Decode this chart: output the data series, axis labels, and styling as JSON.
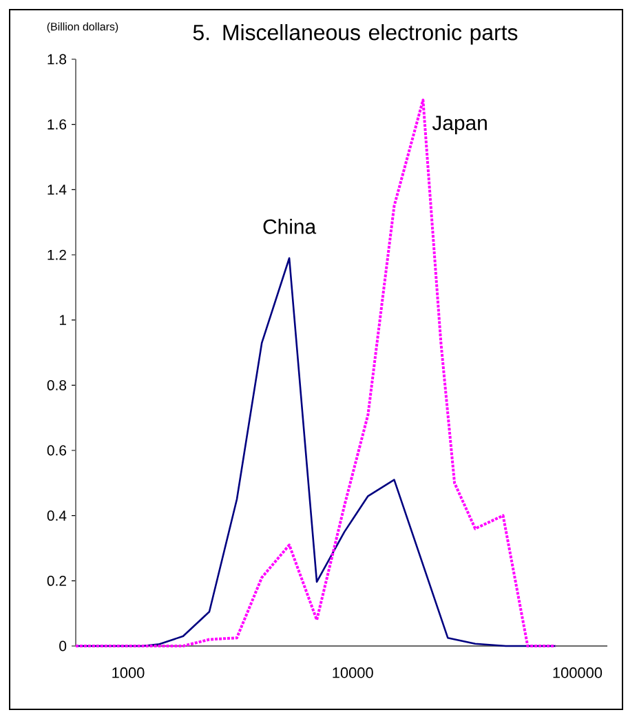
{
  "chart_data": {
    "type": "line",
    "title": "5. Miscellaneous electronic parts",
    "ylabel": "(Billion dollars)",
    "log": "x",
    "xlim": [
      585,
      136000
    ],
    "xticks": [
      1000,
      10000,
      100000
    ],
    "ylim": [
      0,
      1.8
    ],
    "yticks": [
      0,
      0.2,
      0.4,
      0.6,
      0.8,
      1,
      1.2,
      1.4,
      1.6,
      1.8
    ],
    "grid": false,
    "legend": false,
    "marker": "none",
    "series": [
      {
        "name": "China",
        "color": "#000080",
        "line_style": "solid",
        "x": [
          585,
          832,
          1152,
          1365,
          1758,
          2300,
          3050,
          3940,
          5220,
          6920,
          9180,
          11700,
          15300,
          26500,
          35100,
          48000,
          79800
        ],
        "values": [
          0,
          0,
          0,
          0.005,
          0.03,
          0.105,
          0.45,
          0.93,
          1.19,
          0.197,
          0.35,
          0.46,
          0.51,
          0.025,
          0.007,
          0,
          0
        ]
      },
      {
        "name": "Japan",
        "color": "#ff00ff",
        "line_style": "dotted",
        "x": [
          585,
          832,
          1152,
          1365,
          1758,
          2300,
          3050,
          3940,
          5220,
          6920,
          9180,
          11700,
          15300,
          20560,
          24700,
          28400,
          35100,
          46700,
          60100,
          79800
        ],
        "values": [
          0,
          0,
          0,
          0,
          0,
          0.02,
          0.025,
          0.21,
          0.31,
          0.08,
          0.43,
          0.71,
          1.35,
          1.675,
          0.93,
          0.5,
          0.36,
          0.4,
          0,
          0
        ]
      }
    ]
  }
}
